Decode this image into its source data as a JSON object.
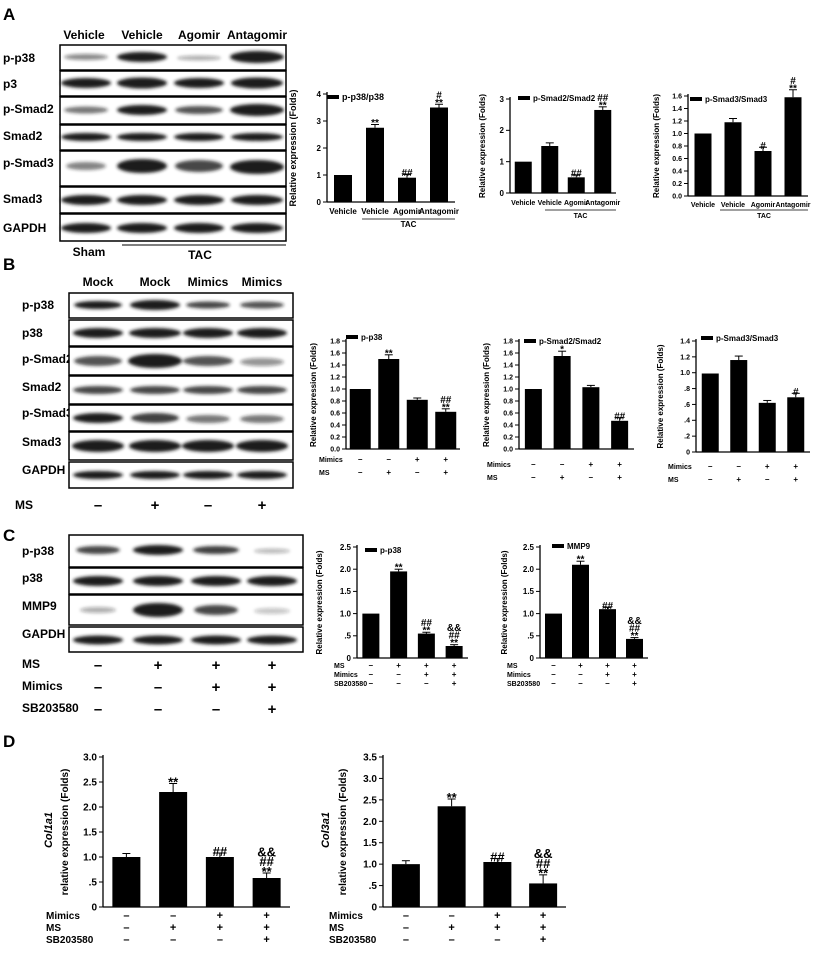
{
  "panels": {
    "A": {
      "letter": "A",
      "blot": {
        "lane_headers": [
          "Vehicle",
          "Vehicle",
          "Agomir",
          "Antagomir"
        ],
        "rows": [
          "p-p38",
          "p3",
          "p-Smad2",
          "Smad2",
          "p-Smad3",
          "Smad3",
          "GAPDH"
        ],
        "footer_sham": "Sham",
        "footer_tac": "TAC"
      }
    },
    "B": {
      "letter": "B",
      "blot": {
        "lane_headers": [
          "Mock",
          "Mock",
          "Mimics",
          "Mimics"
        ],
        "rows": [
          "p-p38",
          "p38",
          "p-Smad2",
          "Smad2",
          "p-Smad3",
          "Smad3",
          "GAPDH"
        ],
        "cond_label": "MS",
        "cond_signs": [
          "–",
          "+",
          "–",
          "+"
        ]
      }
    },
    "C": {
      "letter": "C",
      "blot": {
        "rows": [
          "p-p38",
          "p38",
          "MMP9",
          "GAPDH"
        ],
        "conditions": [
          {
            "label": "MS",
            "signs": [
              "–",
              "+",
              "+",
              "+"
            ]
          },
          {
            "label": "Mimics",
            "signs": [
              "–",
              "–",
              "+",
              "+"
            ]
          },
          {
            "label": "SB203580",
            "signs": [
              "–",
              "–",
              "–",
              "+"
            ]
          }
        ]
      }
    },
    "D": {
      "letter": "D"
    }
  },
  "chart_data": [
    {
      "id": "A1",
      "type": "bar",
      "legend": "p-p38/p38",
      "ylabel": "Relative expression (Folds)",
      "ylim": [
        0,
        4
      ],
      "yticks": [
        "0",
        "1",
        "2",
        "3",
        "4"
      ],
      "categories": [
        "Vehicle",
        "Vehicle",
        "Agomir",
        "Antagomir"
      ],
      "group_label": "TAC",
      "values": [
        1.0,
        2.75,
        0.9,
        3.5
      ],
      "errors": [
        0.0,
        0.12,
        0.12,
        0.12
      ],
      "annotations": [
        [],
        [
          "**"
        ],
        [
          "##"
        ],
        [
          "#",
          "**"
        ]
      ]
    },
    {
      "id": "A2",
      "type": "bar",
      "legend": "p-Smad2/Smad2",
      "ylabel": "Relative expression (Folds)",
      "ylim": [
        0,
        3
      ],
      "yticks": [
        "0",
        "1",
        "2",
        "3"
      ],
      "categories": [
        "Vehicle",
        "Vehicle",
        "Agomir",
        "Antagomir"
      ],
      "group_label": "TAC",
      "values": [
        1.0,
        1.5,
        0.5,
        2.65
      ],
      "errors": [
        0.0,
        0.1,
        0.07,
        0.1
      ],
      "annotations": [
        [],
        [],
        [
          "##"
        ],
        [
          "##",
          "**"
        ]
      ]
    },
    {
      "id": "A3",
      "type": "bar",
      "legend": "p-Smad3/Smad3",
      "ylabel": "Relative expression (Folds)",
      "ylim": [
        0,
        1.6
      ],
      "yticks": [
        "0.0",
        "0.2",
        "0.4",
        "0.6",
        "0.8",
        "1.0",
        "1.2",
        "1.4",
        "1.6"
      ],
      "categories": [
        "Vehicle",
        "Vehicle",
        "Agomir",
        "Antagomir"
      ],
      "group_label": "TAC",
      "values": [
        1.0,
        1.18,
        0.72,
        1.58
      ],
      "errors": [
        0.0,
        0.06,
        0.06,
        0.12
      ],
      "annotations": [
        [],
        [],
        [
          "#"
        ],
        [
          "#",
          "**"
        ]
      ]
    },
    {
      "id": "B1",
      "type": "bar",
      "legend": "p-p38",
      "ylabel": "Relative expression (Folds)",
      "ylim": [
        0,
        1.8
      ],
      "yticks": [
        "0.0",
        "0.2",
        "0.4",
        "0.6",
        "0.8",
        "1.0",
        "1.2",
        "1.4",
        "1.6",
        "1.8"
      ],
      "values": [
        1.0,
        1.5,
        0.82,
        0.62
      ],
      "errors": [
        0.0,
        0.07,
        0.03,
        0.05
      ],
      "annotations": [
        [],
        [
          "**"
        ],
        [],
        [
          "##",
          "**"
        ]
      ],
      "conditions": [
        {
          "label": "Mimics",
          "signs": [
            "–",
            "–",
            "+",
            "+"
          ]
        },
        {
          "label": "MS",
          "signs": [
            "–",
            "+",
            "–",
            "+"
          ]
        }
      ]
    },
    {
      "id": "B2",
      "type": "bar",
      "legend": "p-Smad2/Smad2",
      "ylabel": "Relative expression (Folds)",
      "ylim": [
        0,
        1.8
      ],
      "yticks": [
        "0.0",
        "0.2",
        "0.4",
        "0.6",
        "0.8",
        "1.0",
        "1.2",
        "1.4",
        "1.6",
        "1.8"
      ],
      "values": [
        1.0,
        1.55,
        1.03,
        0.47
      ],
      "errors": [
        0.0,
        0.08,
        0.03,
        0.05
      ],
      "annotations": [
        [],
        [
          "*"
        ],
        [],
        [
          "##"
        ]
      ],
      "conditions": [
        {
          "label": "Mimics",
          "signs": [
            "–",
            "–",
            "+",
            "+"
          ]
        },
        {
          "label": "MS",
          "signs": [
            "–",
            "+",
            "–",
            "+"
          ]
        }
      ]
    },
    {
      "id": "B3",
      "type": "bar",
      "legend": "p-Smad3/Smad3",
      "ylabel": "Relative expression (Folds)",
      "ylim": [
        0,
        1.4
      ],
      "yticks": [
        "0",
        ".2",
        ".4",
        ".6",
        ".8",
        "1.0",
        "1.2",
        "1.4"
      ],
      "values": [
        0.99,
        1.16,
        0.62,
        0.69
      ],
      "errors": [
        0.0,
        0.05,
        0.03,
        0.05
      ],
      "annotations": [
        [],
        [],
        [],
        [
          "#"
        ]
      ],
      "conditions": [
        {
          "label": "Mimics",
          "signs": [
            "–",
            "–",
            "+",
            "+"
          ]
        },
        {
          "label": "MS",
          "signs": [
            "–",
            "+",
            "–",
            "+"
          ]
        }
      ]
    },
    {
      "id": "C1",
      "type": "bar",
      "legend": "p-p38",
      "ylabel": "Relative expression (Folds)",
      "ylim": [
        0,
        2.5
      ],
      "yticks": [
        "0",
        ".5",
        "1.0",
        "1.5",
        "2.0",
        "2.5"
      ],
      "values": [
        1.0,
        1.95,
        0.55,
        0.27
      ],
      "errors": [
        0.0,
        0.05,
        0.03,
        0.03
      ],
      "annotations": [
        [],
        [
          "**"
        ],
        [
          "##",
          "**"
        ],
        [
          "&&",
          "##",
          "**"
        ]
      ],
      "conditions": [
        {
          "label": "MS",
          "signs": [
            "–",
            "+",
            "+",
            "+"
          ]
        },
        {
          "label": "Mimics",
          "signs": [
            "–",
            "–",
            "+",
            "+"
          ]
        },
        {
          "label": "SB203580",
          "signs": [
            "–",
            "–",
            "–",
            "+"
          ]
        }
      ]
    },
    {
      "id": "C2",
      "type": "bar",
      "legend": "MMP9",
      "ylabel": "Relative expression (Folds)",
      "ylim": [
        0,
        2.5
      ],
      "yticks": [
        "0",
        ".5",
        "1.0",
        "1.5",
        "2.0",
        "2.5"
      ],
      "values": [
        1.0,
        2.1,
        1.1,
        0.43
      ],
      "errors": [
        0.0,
        0.08,
        0.04,
        0.03
      ],
      "annotations": [
        [],
        [
          "**"
        ],
        [
          "##"
        ],
        [
          "&&",
          "##",
          "**"
        ]
      ],
      "conditions": [
        {
          "label": "MS",
          "signs": [
            "–",
            "+",
            "+",
            "+"
          ]
        },
        {
          "label": "Mimics",
          "signs": [
            "–",
            "–",
            "+",
            "+"
          ]
        },
        {
          "label": "SB203580",
          "signs": [
            "–",
            "–",
            "–",
            "+"
          ]
        }
      ]
    },
    {
      "id": "D1",
      "type": "bar",
      "gene": "Col1a1",
      "ylabel": "relative expression (Folds)",
      "ylim": [
        0,
        3.0
      ],
      "yticks": [
        "0",
        ".5",
        "1.0",
        "1.5",
        "2.0",
        "2.5",
        "3.0"
      ],
      "values": [
        1.0,
        2.3,
        1.0,
        0.58
      ],
      "errors": [
        0.07,
        0.17,
        0.08,
        0.1
      ],
      "annotations": [
        [],
        [
          "**"
        ],
        [
          "##"
        ],
        [
          "&&",
          "##",
          "**"
        ]
      ],
      "conditions": [
        {
          "label": "Mimics",
          "signs": [
            "–",
            "–",
            "+",
            "+"
          ]
        },
        {
          "label": "MS",
          "signs": [
            "–",
            "+",
            "+",
            "+"
          ]
        },
        {
          "label": "SB203580",
          "signs": [
            "–",
            "–",
            "–",
            "+"
          ]
        }
      ]
    },
    {
      "id": "D2",
      "type": "bar",
      "gene": "Col3a1",
      "ylabel": "relative expression (Folds)",
      "ylim": [
        0,
        3.5
      ],
      "yticks": [
        "0",
        ".5",
        "1.0",
        "1.5",
        "2.0",
        "2.5",
        "3.0",
        "3.5"
      ],
      "values": [
        1.0,
        2.35,
        1.05,
        0.55
      ],
      "errors": [
        0.08,
        0.17,
        0.08,
        0.2
      ],
      "annotations": [
        [],
        [
          "**"
        ],
        [
          "##"
        ],
        [
          "&&",
          "##",
          "**"
        ]
      ],
      "conditions": [
        {
          "label": "Mimics",
          "signs": [
            "–",
            "–",
            "+",
            "+"
          ]
        },
        {
          "label": "MS",
          "signs": [
            "–",
            "+",
            "+",
            "+"
          ]
        },
        {
          "label": "SB203580",
          "signs": [
            "–",
            "–",
            "–",
            "+"
          ]
        }
      ]
    }
  ]
}
